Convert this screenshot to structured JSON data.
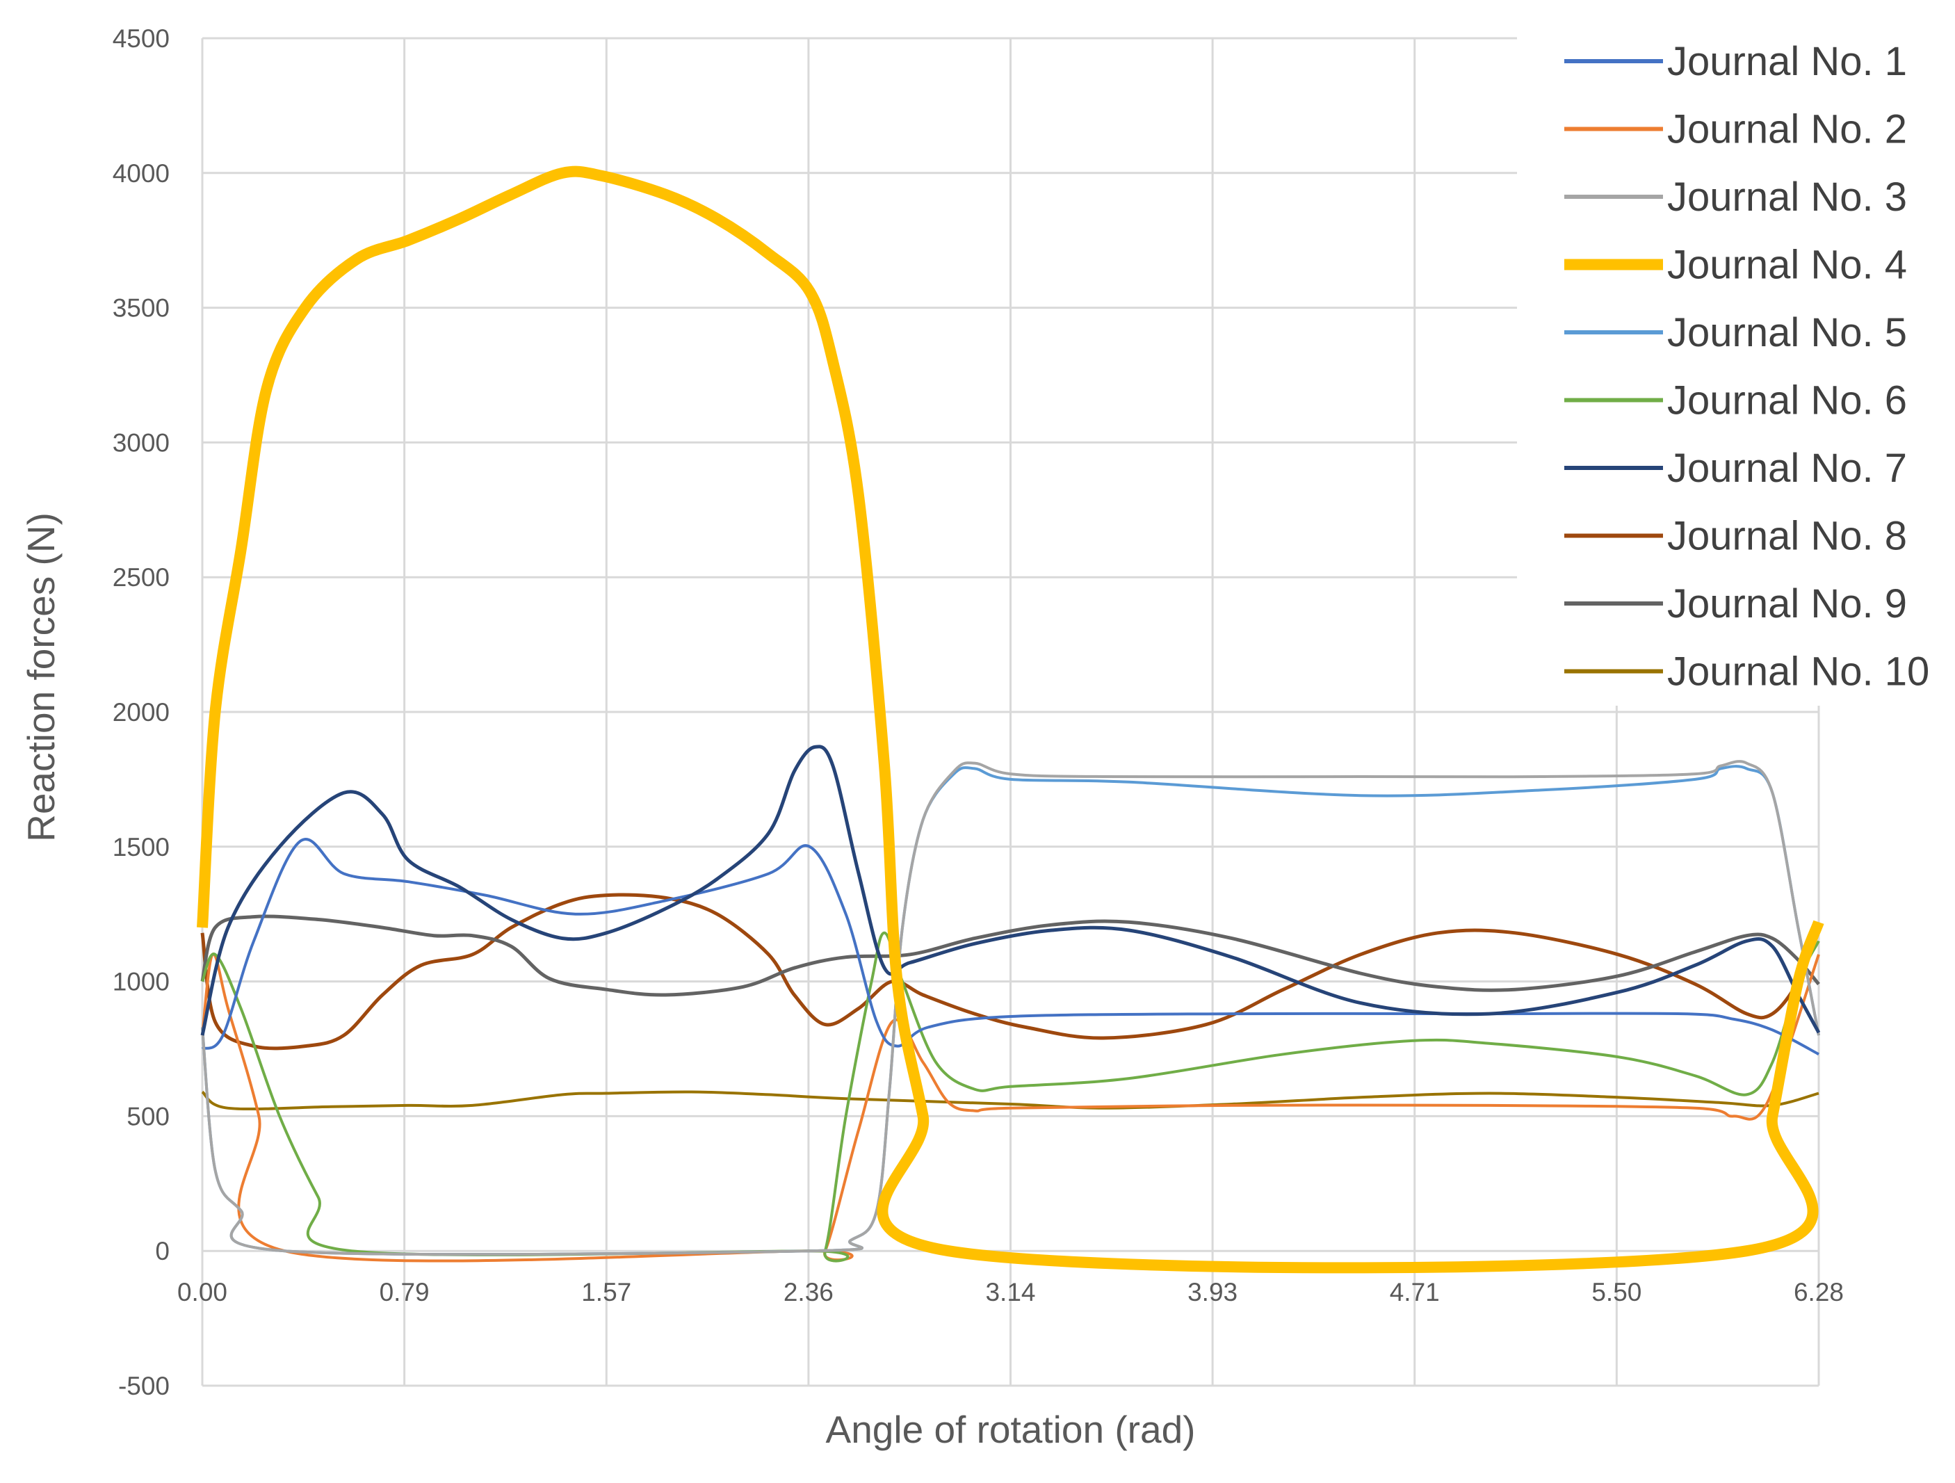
{
  "chart_data": {
    "type": "line",
    "title": "",
    "xlabel": "Angle of rotation (rad)",
    "ylabel": "Reaction forces (N)",
    "xlim": [
      0,
      6.28
    ],
    "ylim": [
      -500,
      4500
    ],
    "x_ticks": [
      "0.00",
      "0.79",
      "1.57",
      "2.36",
      "3.14",
      "3.93",
      "4.71",
      "5.50",
      "6.28"
    ],
    "y_ticks": [
      "4500",
      "4000",
      "3500",
      "3000",
      "2500",
      "2000",
      "1500",
      "1000",
      "500",
      "0",
      "-500"
    ],
    "grid": true,
    "legend_position": "top-right",
    "series": [
      {
        "name": "Journal No. 1",
        "color": "#4472c4",
        "width": 4,
        "points": [
          [
            0,
            750
          ],
          [
            0.08,
            800
          ],
          [
            0.2,
            1150
          ],
          [
            0.38,
            1520
          ],
          [
            0.55,
            1400
          ],
          [
            0.8,
            1370
          ],
          [
            1.1,
            1320
          ],
          [
            1.45,
            1250
          ],
          [
            1.8,
            1300
          ],
          [
            2.2,
            1400
          ],
          [
            2.36,
            1500
          ],
          [
            2.5,
            1250
          ],
          [
            2.62,
            850
          ],
          [
            2.7,
            760
          ],
          [
            2.82,
            830
          ],
          [
            3.14,
            870
          ],
          [
            4.0,
            880
          ],
          [
            5.0,
            880
          ],
          [
            5.75,
            880
          ],
          [
            5.95,
            860
          ],
          [
            6.1,
            820
          ],
          [
            6.28,
            730
          ]
        ]
      },
      {
        "name": "Journal No. 2",
        "color": "#ed7d31",
        "width": 4,
        "points": [
          [
            0,
            800
          ],
          [
            0.04,
            1100
          ],
          [
            0.1,
            900
          ],
          [
            0.22,
            500
          ],
          [
            0.32,
            0
          ],
          [
            2.36,
            0
          ],
          [
            2.42,
            0
          ],
          [
            2.55,
            450
          ],
          [
            2.68,
            850
          ],
          [
            2.8,
            700
          ],
          [
            2.9,
            550
          ],
          [
            3.0,
            520
          ],
          [
            3.14,
            530
          ],
          [
            4.0,
            540
          ],
          [
            5.0,
            540
          ],
          [
            5.8,
            530
          ],
          [
            5.95,
            500
          ],
          [
            6.08,
            550
          ],
          [
            6.28,
            1100
          ]
        ]
      },
      {
        "name": "Journal No. 3",
        "color": "#a5a5a5",
        "width": 4,
        "points": [
          [
            0,
            830
          ],
          [
            0.05,
            300
          ],
          [
            0.15,
            150
          ],
          [
            0.32,
            0
          ],
          [
            2.36,
            0
          ],
          [
            2.52,
            40
          ],
          [
            2.62,
            150
          ],
          [
            2.67,
            600
          ],
          [
            2.72,
            1200
          ],
          [
            2.8,
            1600
          ],
          [
            2.92,
            1780
          ],
          [
            3.0,
            1810
          ],
          [
            3.14,
            1770
          ],
          [
            3.5,
            1760
          ],
          [
            4.5,
            1760
          ],
          [
            5.2,
            1760
          ],
          [
            5.8,
            1770
          ],
          [
            5.9,
            1800
          ],
          [
            6.0,
            1810
          ],
          [
            6.1,
            1700
          ],
          [
            6.2,
            1200
          ],
          [
            6.28,
            800
          ]
        ]
      },
      {
        "name": "Journal No. 4",
        "color": "#ffc000",
        "width": 16,
        "points": [
          [
            0,
            1200
          ],
          [
            0.05,
            2000
          ],
          [
            0.15,
            2600
          ],
          [
            0.25,
            3200
          ],
          [
            0.4,
            3500
          ],
          [
            0.6,
            3680
          ],
          [
            0.8,
            3750
          ],
          [
            1.0,
            3830
          ],
          [
            1.2,
            3920
          ],
          [
            1.4,
            4000
          ],
          [
            1.55,
            3990
          ],
          [
            1.8,
            3920
          ],
          [
            2.0,
            3830
          ],
          [
            2.2,
            3700
          ],
          [
            2.36,
            3560
          ],
          [
            2.45,
            3300
          ],
          [
            2.55,
            2800
          ],
          [
            2.65,
            1800
          ],
          [
            2.7,
            1000
          ],
          [
            2.8,
            500
          ],
          [
            2.9,
            0
          ],
          [
            6.0,
            0
          ],
          [
            6.1,
            500
          ],
          [
            6.2,
            1000
          ],
          [
            6.28,
            1220
          ]
        ]
      },
      {
        "name": "Journal No. 5",
        "color": "#5b9bd5",
        "width": 4,
        "points": [
          [
            0,
            830
          ],
          [
            0.05,
            300
          ],
          [
            0.15,
            150
          ],
          [
            0.32,
            0
          ],
          [
            2.36,
            0
          ],
          [
            2.52,
            40
          ],
          [
            2.62,
            150
          ],
          [
            2.67,
            600
          ],
          [
            2.72,
            1200
          ],
          [
            2.8,
            1600
          ],
          [
            2.92,
            1770
          ],
          [
            3.0,
            1790
          ],
          [
            3.14,
            1750
          ],
          [
            3.6,
            1740
          ],
          [
            4.5,
            1690
          ],
          [
            5.2,
            1710
          ],
          [
            5.8,
            1750
          ],
          [
            5.9,
            1790
          ],
          [
            6.0,
            1790
          ],
          [
            6.1,
            1700
          ],
          [
            6.2,
            1200
          ],
          [
            6.28,
            800
          ]
        ]
      },
      {
        "name": "Journal No. 6",
        "color": "#70ad47",
        "width": 4,
        "points": [
          [
            0,
            1000
          ],
          [
            0.05,
            1100
          ],
          [
            0.15,
            900
          ],
          [
            0.3,
            500
          ],
          [
            0.45,
            200
          ],
          [
            0.58,
            0
          ],
          [
            2.36,
            0
          ],
          [
            2.42,
            0
          ],
          [
            2.5,
            500
          ],
          [
            2.6,
            1000
          ],
          [
            2.65,
            1180
          ],
          [
            2.72,
            1000
          ],
          [
            2.85,
            700
          ],
          [
            3.0,
            600
          ],
          [
            3.14,
            610
          ],
          [
            3.6,
            640
          ],
          [
            4.2,
            730
          ],
          [
            4.7,
            780
          ],
          [
            5.0,
            770
          ],
          [
            5.5,
            720
          ],
          [
            5.8,
            650
          ],
          [
            6.0,
            580
          ],
          [
            6.1,
            700
          ],
          [
            6.2,
            1000
          ],
          [
            6.28,
            1150
          ]
        ]
      },
      {
        "name": "Journal No. 7",
        "color": "#264478",
        "width": 5,
        "points": [
          [
            0,
            800
          ],
          [
            0.1,
            1200
          ],
          [
            0.3,
            1500
          ],
          [
            0.55,
            1700
          ],
          [
            0.7,
            1620
          ],
          [
            0.8,
            1450
          ],
          [
            1.0,
            1350
          ],
          [
            1.2,
            1230
          ],
          [
            1.4,
            1160
          ],
          [
            1.57,
            1180
          ],
          [
            1.8,
            1270
          ],
          [
            2.0,
            1380
          ],
          [
            2.2,
            1550
          ],
          [
            2.3,
            1780
          ],
          [
            2.38,
            1870
          ],
          [
            2.45,
            1800
          ],
          [
            2.55,
            1400
          ],
          [
            2.65,
            1050
          ],
          [
            2.75,
            1070
          ],
          [
            3.0,
            1140
          ],
          [
            3.3,
            1190
          ],
          [
            3.6,
            1190
          ],
          [
            4.0,
            1090
          ],
          [
            4.5,
            920
          ],
          [
            5.0,
            880
          ],
          [
            5.5,
            960
          ],
          [
            5.8,
            1060
          ],
          [
            6.0,
            1150
          ],
          [
            6.1,
            1130
          ],
          [
            6.2,
            950
          ],
          [
            6.28,
            810
          ]
        ]
      },
      {
        "name": "Journal No. 8",
        "color": "#9e480e",
        "width": 5,
        "points": [
          [
            0,
            1180
          ],
          [
            0.05,
            850
          ],
          [
            0.2,
            760
          ],
          [
            0.4,
            760
          ],
          [
            0.55,
            800
          ],
          [
            0.7,
            950
          ],
          [
            0.85,
            1060
          ],
          [
            1.05,
            1100
          ],
          [
            1.2,
            1200
          ],
          [
            1.4,
            1290
          ],
          [
            1.57,
            1320
          ],
          [
            1.8,
            1310
          ],
          [
            2.0,
            1250
          ],
          [
            2.2,
            1100
          ],
          [
            2.3,
            950
          ],
          [
            2.42,
            840
          ],
          [
            2.55,
            900
          ],
          [
            2.68,
            1000
          ],
          [
            2.8,
            950
          ],
          [
            3.0,
            880
          ],
          [
            3.2,
            830
          ],
          [
            3.5,
            790
          ],
          [
            3.9,
            840
          ],
          [
            4.2,
            970
          ],
          [
            4.5,
            1100
          ],
          [
            4.8,
            1180
          ],
          [
            5.1,
            1180
          ],
          [
            5.5,
            1100
          ],
          [
            5.8,
            990
          ],
          [
            6.0,
            880
          ],
          [
            6.1,
            880
          ],
          [
            6.2,
            1000
          ],
          [
            6.28,
            1190
          ]
        ]
      },
      {
        "name": "Journal No. 9",
        "color": "#636363",
        "width": 5,
        "points": [
          [
            0,
            1000
          ],
          [
            0.05,
            1200
          ],
          [
            0.2,
            1240
          ],
          [
            0.45,
            1230
          ],
          [
            0.7,
            1200
          ],
          [
            0.9,
            1170
          ],
          [
            1.05,
            1170
          ],
          [
            1.2,
            1130
          ],
          [
            1.35,
            1010
          ],
          [
            1.57,
            970
          ],
          [
            1.8,
            950
          ],
          [
            2.1,
            980
          ],
          [
            2.3,
            1050
          ],
          [
            2.5,
            1090
          ],
          [
            2.75,
            1100
          ],
          [
            3.0,
            1160
          ],
          [
            3.3,
            1210
          ],
          [
            3.6,
            1220
          ],
          [
            4.0,
            1160
          ],
          [
            4.5,
            1030
          ],
          [
            4.8,
            980
          ],
          [
            5.1,
            970
          ],
          [
            5.5,
            1020
          ],
          [
            5.8,
            1110
          ],
          [
            6.0,
            1170
          ],
          [
            6.1,
            1160
          ],
          [
            6.2,
            1080
          ],
          [
            6.28,
            990
          ]
        ]
      },
      {
        "name": "Journal No. 10",
        "color": "#997300",
        "width": 4,
        "points": [
          [
            0,
            590
          ],
          [
            0.1,
            530
          ],
          [
            0.5,
            535
          ],
          [
            0.8,
            540
          ],
          [
            1.05,
            540
          ],
          [
            1.4,
            580
          ],
          [
            1.57,
            585
          ],
          [
            1.9,
            590
          ],
          [
            2.2,
            580
          ],
          [
            2.5,
            565
          ],
          [
            3.14,
            545
          ],
          [
            3.5,
            530
          ],
          [
            4.0,
            545
          ],
          [
            4.5,
            570
          ],
          [
            5.0,
            585
          ],
          [
            5.5,
            570
          ],
          [
            5.9,
            550
          ],
          [
            6.1,
            540
          ],
          [
            6.28,
            585
          ]
        ]
      }
    ]
  }
}
